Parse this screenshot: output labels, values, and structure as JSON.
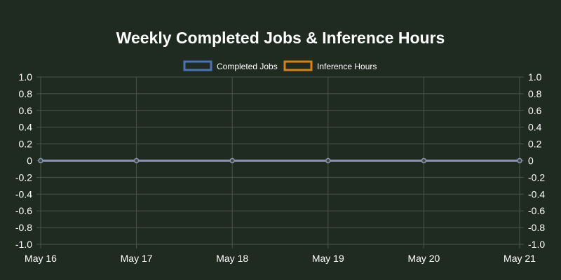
{
  "chart_data": {
    "type": "line",
    "title": "Weekly Completed Jobs & Inference Hours",
    "categories": [
      "May 16",
      "May 17",
      "May 18",
      "May 19",
      "May 20",
      "May 21"
    ],
    "series": [
      {
        "name": "Completed Jobs",
        "values": [
          0,
          0,
          0,
          0,
          0,
          0
        ],
        "color": "#4a72b8",
        "axis": "left"
      },
      {
        "name": "Inference Hours",
        "values": [
          0,
          0,
          0,
          0,
          0,
          0
        ],
        "color": "#d9820f",
        "axis": "right"
      }
    ],
    "y_left": {
      "ylim": [
        -1.0,
        1.0
      ],
      "ticks": [
        "1.0",
        "0.8",
        "0.6",
        "0.4",
        "0.2",
        "0",
        "-0.2",
        "-0.4",
        "-0.6",
        "-0.8",
        "-1.0"
      ]
    },
    "y_right": {
      "ylim": [
        -1.0,
        1.0
      ],
      "ticks": [
        "1.0",
        "0.8",
        "0.6",
        "0.4",
        "0.2",
        "0",
        "-0.2",
        "-0.4",
        "-0.6",
        "-0.8",
        "-1.0"
      ]
    },
    "grid": true,
    "legend_position": "top",
    "colors": {
      "background": "#1f2a20",
      "grid": "#4a554a",
      "text": "#ffffff",
      "overlap_line": "#8a93b0"
    }
  }
}
